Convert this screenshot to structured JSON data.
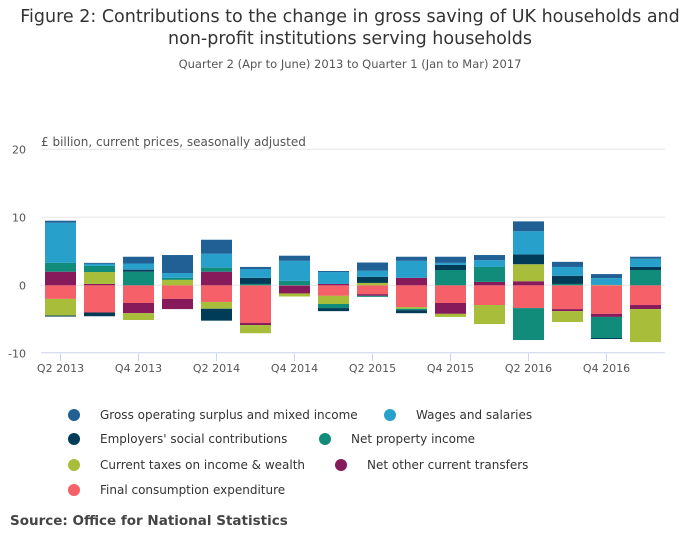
{
  "title_line1": "Figure 2: Contributions to the change in gross saving of UK households and",
  "title_line2": "non-profit institutions serving households",
  "subtitle": "Quarter 2 (Apr to June) 2013 to Quarter 1 (Jan to Mar) 2017",
  "source": "Source: Office for National Statistics",
  "chart_data": {
    "type": "bar",
    "stacked": true,
    "ylabel": "£ billion, current prices, seasonally adjusted",
    "ylim": [
      -10,
      20
    ],
    "yticks": [
      -10,
      0,
      10,
      20
    ],
    "grid": true,
    "legend_placement": "bottom",
    "categories": [
      "Q2 2013",
      "Q3 2013",
      "Q4 2013",
      "Q1 2014",
      "Q2 2014",
      "Q3 2014",
      "Q4 2014",
      "Q1 2015",
      "Q2 2015",
      "Q3 2015",
      "Q4 2015",
      "Q1 2016",
      "Q2 2016",
      "Q3 2016",
      "Q4 2016",
      "Q1 2017"
    ],
    "xtick_labels": [
      "Q2 2013",
      "Q4 2013",
      "Q2 2014",
      "Q4 2014",
      "Q2 2015",
      "Q4 2015",
      "Q2 2016",
      "Q4 2016"
    ],
    "series": [
      {
        "name": "Gross operating surplus and mixed income",
        "color": "#206095",
        "values": [
          0.3,
          0.15,
          1.0,
          2.65,
          2.05,
          0.3,
          0.75,
          0.15,
          1.2,
          0.6,
          0.9,
          0.75,
          1.45,
          0.75,
          0.6,
          0.3
        ]
      },
      {
        "name": "Wages and salaries",
        "color": "#27a0cc",
        "values": [
          5.9,
          0.3,
          0.9,
          0.7,
          2.05,
          1.3,
          2.95,
          1.75,
          0.9,
          2.5,
          0.3,
          1.0,
          3.4,
          1.3,
          1.0,
          1.2
        ]
      },
      {
        "name": "Employers' social contributions",
        "color": "#003c57",
        "values": [
          -0.15,
          -0.55,
          0.3,
          0,
          -1.75,
          0.9,
          0,
          -0.45,
          0.9,
          -0.45,
          0.75,
          0,
          1.45,
          1.2,
          -0.15,
          0.45
        ]
      },
      {
        "name": "Net property income",
        "color": "#118c7b",
        "values": [
          1.3,
          0.9,
          2.0,
          0.3,
          0.6,
          0.2,
          0.65,
          -0.6,
          -0.15,
          -0.2,
          2.25,
          2.2,
          -4.7,
          0.2,
          -3.1,
          2.25
        ]
      },
      {
        "name": "Current taxes on income & wealth",
        "color": "#a8bd3a",
        "values": [
          -2.45,
          1.75,
          -1.0,
          0.8,
          -1.0,
          -1.2,
          -0.45,
          -1.2,
          0.35,
          -0.25,
          -0.45,
          -2.8,
          2.5,
          -1.6,
          0.05,
          -4.85
        ]
      },
      {
        "name": "Net other current transfers",
        "color": "#871a5b",
        "values": [
          2.0,
          0.2,
          -1.5,
          -1.5,
          2.0,
          -0.3,
          -1.15,
          0.2,
          -0.25,
          1.1,
          -1.6,
          0.5,
          0.6,
          -0.3,
          -0.45,
          -0.6
        ]
      },
      {
        "name": "Final consumption expenditure",
        "color": "#f66068",
        "values": [
          -2.0,
          -4.0,
          -2.6,
          -2.0,
          -2.45,
          -5.55,
          -0.05,
          -1.55,
          -1.3,
          -3.2,
          -2.6,
          -2.9,
          -3.35,
          -3.5,
          -4.2,
          -2.9
        ]
      }
    ]
  }
}
